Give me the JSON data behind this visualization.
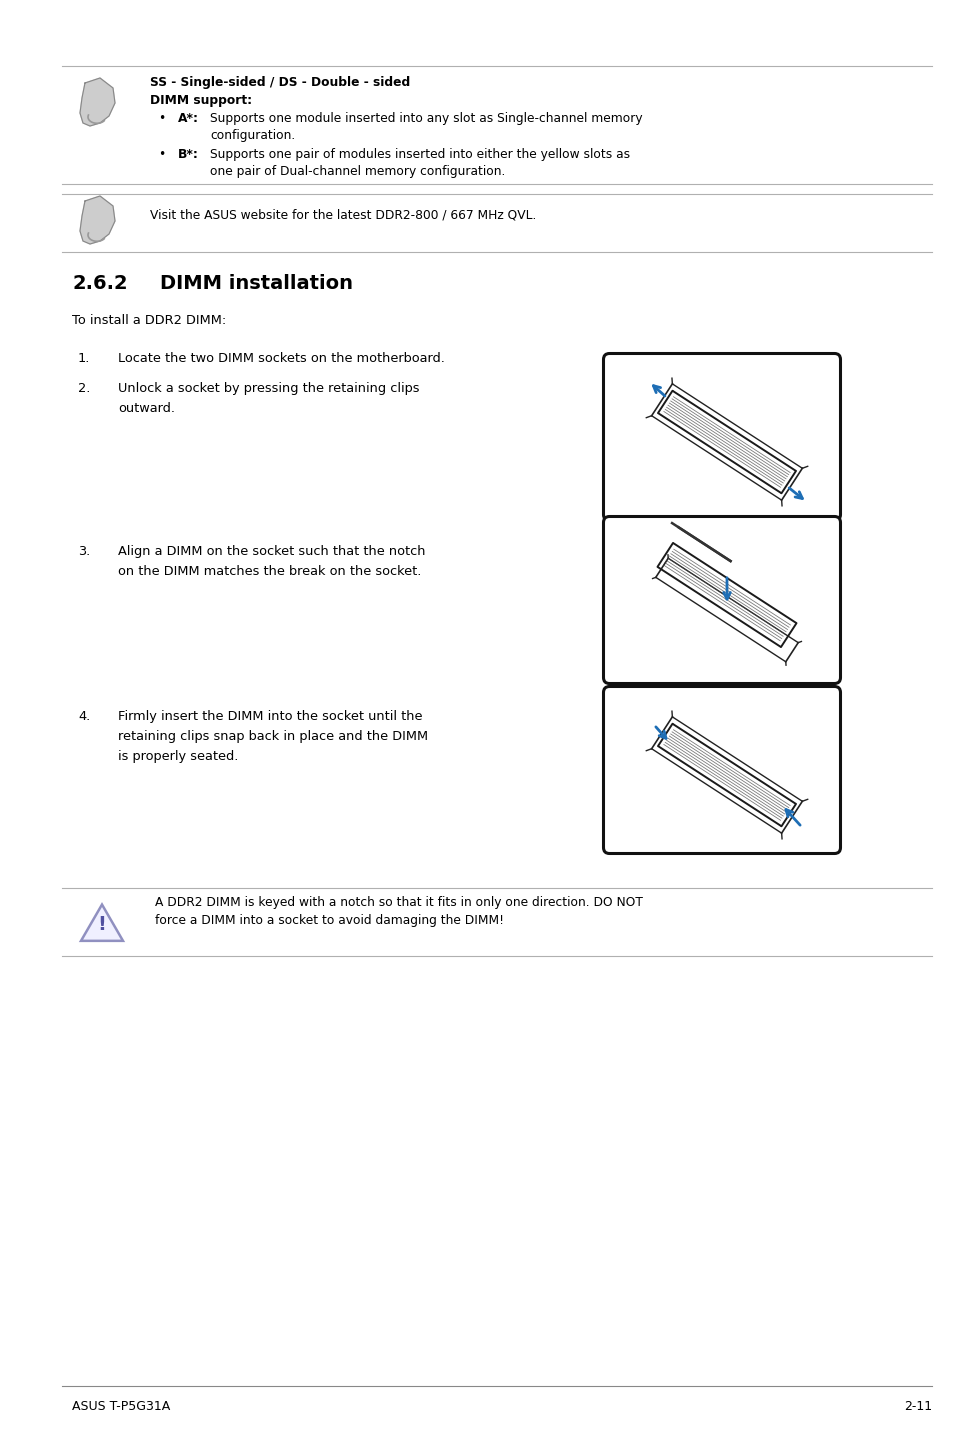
{
  "bg_color": "#ffffff",
  "text_color": "#000000",
  "page_width": 9.54,
  "page_height": 14.38,
  "section_title": "2.6.2",
  "section_title2": "DIMM installation",
  "note1_line1": "SS - Single-sided / DS - Double - sided",
  "note1_line2": "DIMM support:",
  "note1_bullet1_bold": "A*:",
  "note1_bullet1_text": " Supports one module inserted into any slot as Single-channel memory",
  "note1_bullet1_cont": "configuration.",
  "note1_bullet2_bold": "B*:",
  "note1_bullet2_text": " Supports one pair of modules inserted into either the yellow slots as",
  "note1_bullet2_cont": "one pair of Dual-channel memory configuration.",
  "note2_text": "Visit the ASUS website for the latest DDR2-800 / 667 MHz QVL.",
  "intro_text": "To install a DDR2 DIMM:",
  "step1": "Locate the two DIMM sockets on the motherboard.",
  "step2_line1": "Unlock a socket by pressing the retaining clips",
  "step2_line2": "outward.",
  "step3_line1": "Align a DIMM on the socket such that the notch",
  "step3_line2": "on the DIMM matches the break on the socket.",
  "step4_line1": "Firmly insert the DIMM into the socket until the",
  "step4_line2": "retaining clips snap back in place and the DIMM",
  "step4_line3": "is properly seated.",
  "warning_line1": "A DDR2 DIMM is keyed with a notch so that it fits in only one direction. DO NOT",
  "warning_line2": "force a DIMM into a socket to avoid damaging the DIMM!",
  "footer_left": "ASUS T-P5G31A",
  "footer_right": "2-11",
  "blue_color": "#1e6eb5",
  "gray_line_color": "#aaaaaa",
  "dimm_color": "#222222"
}
